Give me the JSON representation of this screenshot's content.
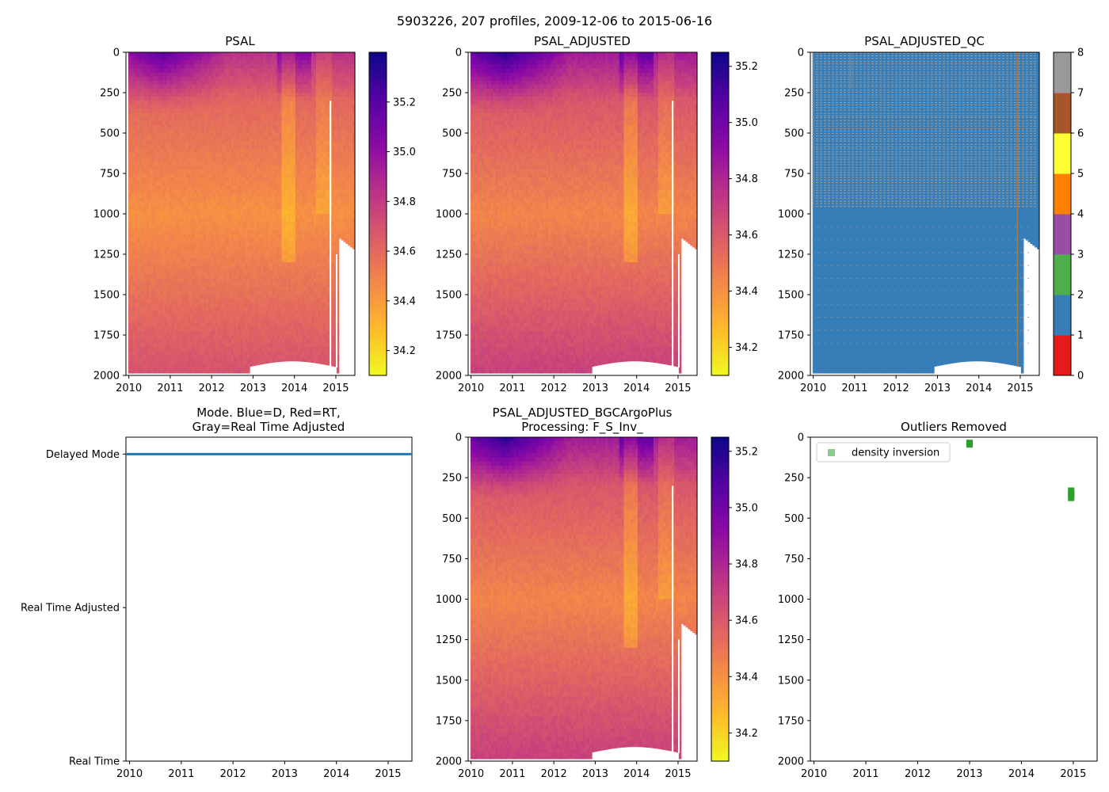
{
  "suptitle": "5903226, 207 profiles, 2009-12-06 to 2015-06-16",
  "chart_data": [
    {
      "type": "heatmap",
      "title": "PSAL",
      "xlim": [
        2009.93,
        2015.46
      ],
      "ylim": [
        2000,
        0
      ],
      "xticks": [
        2010,
        2011,
        2012,
        2013,
        2014,
        2015
      ],
      "yticks": [
        0,
        250,
        500,
        750,
        1000,
        1250,
        1500,
        1750,
        2000
      ],
      "colormap": "plasma_r",
      "vmin": 34.1,
      "vmax": 35.4,
      "colorbar_ticks": [
        34.2,
        34.4,
        34.6,
        34.8,
        35.0,
        35.2
      ]
    },
    {
      "type": "heatmap",
      "title": "PSAL_ADJUSTED",
      "xlim": [
        2009.93,
        2015.46
      ],
      "ylim": [
        2000,
        0
      ],
      "xticks": [
        2010,
        2011,
        2012,
        2013,
        2014,
        2015
      ],
      "yticks": [
        0,
        250,
        500,
        750,
        1000,
        1250,
        1500,
        1750,
        2000
      ],
      "colormap": "plasma_r",
      "vmin": 34.1,
      "vmax": 35.25,
      "colorbar_ticks": [
        34.2,
        34.4,
        34.6,
        34.8,
        35.0,
        35.2
      ]
    },
    {
      "type": "heatmap",
      "title": "PSAL_ADJUSTED_QC",
      "xlim": [
        2009.93,
        2015.46
      ],
      "ylim": [
        2000,
        0
      ],
      "xticks": [
        2010,
        2011,
        2012,
        2013,
        2014,
        2015
      ],
      "yticks": [
        0,
        250,
        500,
        750,
        1000,
        1250,
        1500,
        1750,
        2000
      ],
      "vmin": 0,
      "vmax": 8,
      "colorbar_ticks": [
        0,
        1,
        2,
        3,
        4,
        5,
        6,
        7,
        8
      ],
      "qc_colors": [
        "#e41a1c",
        "#377eb8",
        "#4daf4a",
        "#984ea3",
        "#ff7f00",
        "#ffff33",
        "#a65628",
        "#f781bf",
        "#999999"
      ],
      "dominant_flag": 1,
      "secondary_flag": 8
    },
    {
      "type": "scatter",
      "title_lines": [
        "Mode. Blue=D, Red=RT,",
        "Gray=Real Time Adjusted"
      ],
      "xlim": [
        2009.93,
        2015.46
      ],
      "xticks": [
        2010,
        2011,
        2012,
        2013,
        2014,
        2015
      ],
      "yticks": [
        {
          "value": 2,
          "label": "Delayed Mode"
        },
        {
          "value": 1,
          "label": "Real Time Adjusted"
        },
        {
          "value": 0,
          "label": "Real Time"
        }
      ],
      "ylim": [
        0,
        2.11
      ],
      "series": [
        {
          "name": "D",
          "color": "#1f77b4",
          "y": 2,
          "x_range": [
            2009.93,
            2015.46
          ]
        }
      ]
    },
    {
      "type": "heatmap",
      "title_lines": [
        "PSAL_ADJUSTED_BGCArgoPlus",
        "Processing: F_S_Inv_"
      ],
      "xlim": [
        2009.93,
        2015.46
      ],
      "ylim": [
        2000,
        0
      ],
      "xticks": [
        2010,
        2011,
        2012,
        2013,
        2014,
        2015
      ],
      "yticks": [
        0,
        250,
        500,
        750,
        1000,
        1250,
        1500,
        1750,
        2000
      ],
      "colormap": "plasma_r",
      "vmin": 34.1,
      "vmax": 35.25,
      "colorbar_ticks": [
        34.2,
        34.4,
        34.6,
        34.8,
        35.0,
        35.2
      ]
    },
    {
      "type": "scatter",
      "title": "Outliers Removed",
      "xlim": [
        2009.93,
        2015.46
      ],
      "ylim": [
        2000,
        0
      ],
      "xticks": [
        2010,
        2011,
        2012,
        2013,
        2014,
        2015
      ],
      "yticks": [
        0,
        250,
        500,
        750,
        1000,
        1250,
        1500,
        1750,
        2000
      ],
      "legend": "upper-left",
      "series": [
        {
          "name": "density inversion",
          "color": "#2ca02c",
          "points": [
            {
              "x": 2013.0,
              "y": 35
            },
            {
              "x": 2013.0,
              "y": 45
            },
            {
              "x": 2014.96,
              "y": 330
            },
            {
              "x": 2014.96,
              "y": 345
            },
            {
              "x": 2014.96,
              "y": 360
            },
            {
              "x": 2014.96,
              "y": 375
            }
          ]
        }
      ]
    }
  ]
}
